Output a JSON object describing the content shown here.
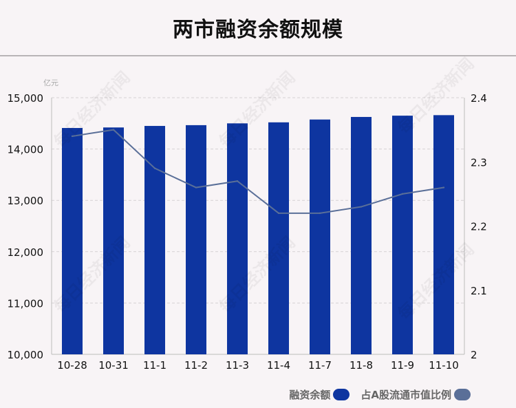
{
  "title": "两市融资余额规模",
  "watermark_text": "每日经济新闻",
  "chart_data": {
    "type": "bar+line",
    "title": "两市融资余额规模",
    "ylabel_left": "亿元",
    "categories": [
      "10-28",
      "10-31",
      "11-1",
      "11-2",
      "11-3",
      "11-4",
      "11-7",
      "11-8",
      "11-9",
      "11-10"
    ],
    "series": [
      {
        "name": "融资余额",
        "type": "bar",
        "axis": "left",
        "color": "#0e35a0",
        "values": [
          14410,
          14420,
          14450,
          14465,
          14500,
          14520,
          14575,
          14625,
          14650,
          14660
        ]
      },
      {
        "name": "占A股流通市值比例",
        "type": "line",
        "axis": "right",
        "color": "#5a6f98",
        "values": [
          2.34,
          2.35,
          2.29,
          2.26,
          2.27,
          2.22,
          2.22,
          2.23,
          2.25,
          2.26
        ]
      }
    ],
    "left_axis": {
      "min": 10000,
      "max": 15000,
      "ticks": [
        10000,
        11000,
        12000,
        13000,
        14000,
        15000
      ],
      "tick_labels": [
        "10,000",
        "11,000",
        "12,000",
        "13,000",
        "14,000",
        "15,000"
      ]
    },
    "right_axis": {
      "min": 2.0,
      "max": 2.4,
      "ticks": [
        2.0,
        2.1,
        2.2,
        2.3,
        2.4
      ],
      "tick_labels": [
        "2",
        "2.1",
        "2.2",
        "2.3",
        "2.4"
      ]
    },
    "grid": true,
    "legend_position": "bottom-right"
  },
  "legend": [
    {
      "label": "融资余额",
      "color": "#0e35a0"
    },
    {
      "label": "占A股流通市值比例",
      "color": "#5a6f98"
    }
  ]
}
